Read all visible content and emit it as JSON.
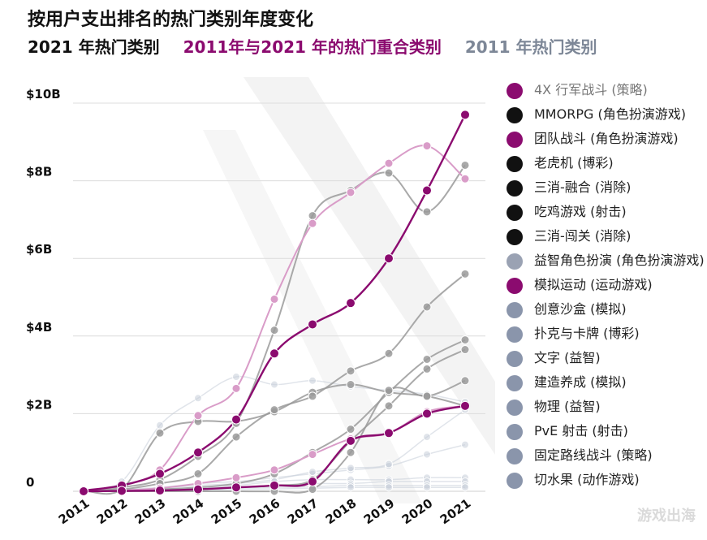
{
  "header": {
    "title": "按用户支出排名的热门类别年度变化",
    "sub_2021": "2021 年热门类别",
    "sub_overlap": "2011年与2021 年的热门重合类别",
    "sub_2011": "2011 年热门类别"
  },
  "colors": {
    "magenta": "#8b0b6f",
    "light_magenta": "#d99cc8",
    "dark_gray": "#9a9a9a",
    "light_gray": "#c7cdd9",
    "black": "#111111",
    "blue_gray": "#8a95ab"
  },
  "watermark": "游戏出海",
  "legend": [
    {
      "label": "4X 行军战斗 (策略)",
      "color": "#8b0b6f",
      "text_color": "#777777"
    },
    {
      "label": "MMORPG (角色扮演游戏)",
      "color": "#111111",
      "text_color": "#222222"
    },
    {
      "label": "团队战斗 (角色扮演游戏)",
      "color": "#8b0b6f",
      "text_color": "#222222"
    },
    {
      "label": "老虎机 (博彩)",
      "color": "#111111",
      "text_color": "#222222"
    },
    {
      "label": "三消-融合 (消除)",
      "color": "#111111",
      "text_color": "#222222"
    },
    {
      "label": "吃鸡游戏 (射击)",
      "color": "#111111",
      "text_color": "#222222"
    },
    {
      "label": "三消-闯关 (消除)",
      "color": "#111111",
      "text_color": "#222222"
    },
    {
      "label": "益智角色扮演 (角色扮演游戏)",
      "color": "#9aa2b3",
      "text_color": "#222222"
    },
    {
      "label": "模拟运动 (运动游戏)",
      "color": "#8b0b6f",
      "text_color": "#222222"
    },
    {
      "label": "创意沙盒 (模拟)",
      "color": "#8a95ab",
      "text_color": "#222222"
    },
    {
      "label": "扑克与卡牌 (博彩)",
      "color": "#8a95ab",
      "text_color": "#222222"
    },
    {
      "label": "文字 (益智)",
      "color": "#8a95ab",
      "text_color": "#222222"
    },
    {
      "label": "建造养成 (模拟)",
      "color": "#8a95ab",
      "text_color": "#222222"
    },
    {
      "label": "物理 (益智)",
      "color": "#8a95ab",
      "text_color": "#222222"
    },
    {
      "label": "PvE 射击 (射击)",
      "color": "#8a95ab",
      "text_color": "#222222"
    },
    {
      "label": "固定路线战斗 (策略)",
      "color": "#8a95ab",
      "text_color": "#222222"
    },
    {
      "label": "切水果 (动作游戏)",
      "color": "#8a95ab",
      "text_color": "#222222"
    }
  ],
  "chart_data": {
    "type": "line",
    "x": [
      "2011",
      "2012",
      "2013",
      "2014",
      "2015",
      "2016",
      "2017",
      "2018",
      "2019",
      "2020",
      "2021"
    ],
    "ylim": [
      0,
      10
    ],
    "y_ticks": [
      {
        "value": 0,
        "label": "0"
      },
      {
        "value": 2,
        "label": "$2B"
      },
      {
        "value": 4,
        "label": "$4B"
      },
      {
        "value": 6,
        "label": "$6B"
      },
      {
        "value": 8,
        "label": "$8B"
      },
      {
        "value": 10,
        "label": "$10B"
      }
    ],
    "grid": true,
    "series": [
      {
        "style": "faint",
        "color": "#c7cdd9",
        "values": [
          0.02,
          0.25,
          1.7,
          2.4,
          2.95,
          2.75,
          2.85,
          2.7,
          2.6,
          2.5,
          2.3
        ]
      },
      {
        "style": "faint",
        "color": "#c7cdd9",
        "values": [
          0.0,
          0.05,
          0.1,
          0.2,
          0.25,
          0.35,
          0.45,
          0.55,
          0.65,
          0.95,
          1.2
        ]
      },
      {
        "style": "faint",
        "color": "#c7cdd9",
        "values": [
          0.0,
          0.02,
          0.08,
          0.15,
          0.2,
          0.3,
          0.5,
          0.6,
          0.7,
          1.4,
          2.1
        ]
      },
      {
        "style": "faint",
        "color": "#c7cdd9",
        "values": [
          0.0,
          0.03,
          0.06,
          0.1,
          0.15,
          0.25,
          0.3,
          0.3,
          0.3,
          0.35,
          0.35
        ]
      },
      {
        "style": "faint",
        "color": "#c7cdd9",
        "values": [
          0.0,
          0.02,
          0.05,
          0.08,
          0.1,
          0.15,
          0.2,
          0.2,
          0.25,
          0.25,
          0.25
        ]
      },
      {
        "style": "faint",
        "color": "#c7cdd9",
        "values": [
          0.0,
          0.01,
          0.03,
          0.05,
          0.08,
          0.1,
          0.12,
          0.15,
          0.15,
          0.15,
          0.15
        ]
      },
      {
        "style": "faint",
        "color": "#c7cdd9",
        "values": [
          0.0,
          0.01,
          0.02,
          0.03,
          0.05,
          0.06,
          0.08,
          0.1,
          0.1,
          0.1,
          0.1
        ]
      },
      {
        "style": "gray",
        "color": "#9a9a9a",
        "values": [
          0.02,
          0.05,
          1.5,
          1.8,
          1.8,
          2.05,
          2.55,
          2.75,
          2.55,
          2.45,
          2.2
        ]
      },
      {
        "style": "gray",
        "color": "#9a9a9a",
        "values": [
          0.0,
          0.1,
          0.3,
          0.9,
          1.75,
          4.15,
          7.1,
          7.75,
          8.2,
          7.2,
          8.4
        ]
      },
      {
        "style": "gray",
        "color": "#9a9a9a",
        "values": [
          0.0,
          0.05,
          0.2,
          0.45,
          1.4,
          2.1,
          2.45,
          3.1,
          3.55,
          4.75,
          5.6
        ]
      },
      {
        "style": "gray",
        "color": "#9a9a9a",
        "values": [
          0.0,
          0.02,
          0.05,
          0.1,
          0.2,
          0.45,
          1.0,
          1.6,
          2.55,
          3.4,
          3.9
        ]
      },
      {
        "style": "gray",
        "color": "#9a9a9a",
        "values": [
          0.0,
          0.01,
          0.02,
          0.05,
          0.1,
          0.15,
          0.3,
          1.3,
          2.2,
          3.15,
          3.65
        ]
      },
      {
        "style": "gray",
        "color": "#9a9a9a",
        "values": [
          0.0,
          0.0,
          0.0,
          0.0,
          0.0,
          0.0,
          0.05,
          1.0,
          2.6,
          2.45,
          2.85
        ]
      },
      {
        "style": "light",
        "color": "#d99cc8",
        "values": [
          0.02,
          0.15,
          0.55,
          1.95,
          2.65,
          4.95,
          6.9,
          7.7,
          8.45,
          8.9,
          8.05
        ]
      },
      {
        "style": "light",
        "color": "#d99cc8",
        "values": [
          0.0,
          0.02,
          0.08,
          0.2,
          0.35,
          0.55,
          0.95,
          1.35,
          1.5,
          2.05,
          2.2
        ]
      },
      {
        "style": "dark",
        "color": "#8b0b6f",
        "values": [
          0.02,
          0.15,
          0.45,
          1.0,
          1.85,
          3.55,
          4.3,
          4.85,
          6.0,
          7.75,
          9.7
        ]
      },
      {
        "style": "dark",
        "color": "#8b0b6f",
        "values": [
          0.0,
          0.01,
          0.02,
          0.05,
          0.1,
          0.15,
          0.25,
          1.3,
          1.5,
          2.0,
          2.2
        ]
      }
    ]
  }
}
